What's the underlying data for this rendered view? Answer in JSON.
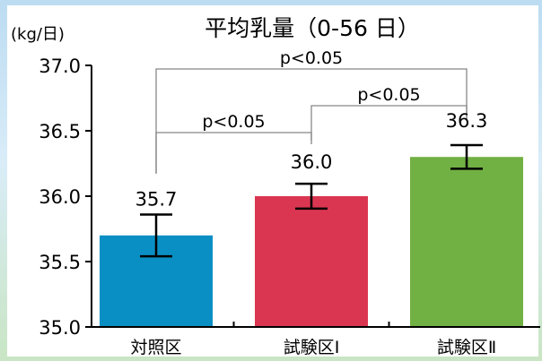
{
  "chart_data": {
    "type": "bar",
    "title": "平均乳量（0-56 日）",
    "ylabel": "(kg/日)",
    "xlabel": "",
    "categories": [
      "対照区",
      "試験区Ⅰ",
      "試験区Ⅱ"
    ],
    "values": [
      35.7,
      36.0,
      36.3
    ],
    "value_labels": [
      "35.7",
      "36.0",
      "36.3"
    ],
    "error": [
      0.16,
      0.095,
      0.09
    ],
    "colors": [
      "#0a8fc4",
      "#db3651",
      "#71b043"
    ],
    "ylim": [
      35.0,
      37.0
    ],
    "yticks": [
      35.0,
      35.5,
      36.0,
      36.5,
      37.0
    ],
    "ytick_labels": [
      "35.0",
      "35.5",
      "36.0",
      "36.5",
      "37.0"
    ],
    "grid": false,
    "significance": [
      {
        "from": 0,
        "to": 2,
        "label": "p<0.05"
      },
      {
        "from": 1,
        "to": 2,
        "label": "p<0.05"
      },
      {
        "from": 0,
        "to": 1,
        "label": "p<0.05"
      }
    ]
  }
}
